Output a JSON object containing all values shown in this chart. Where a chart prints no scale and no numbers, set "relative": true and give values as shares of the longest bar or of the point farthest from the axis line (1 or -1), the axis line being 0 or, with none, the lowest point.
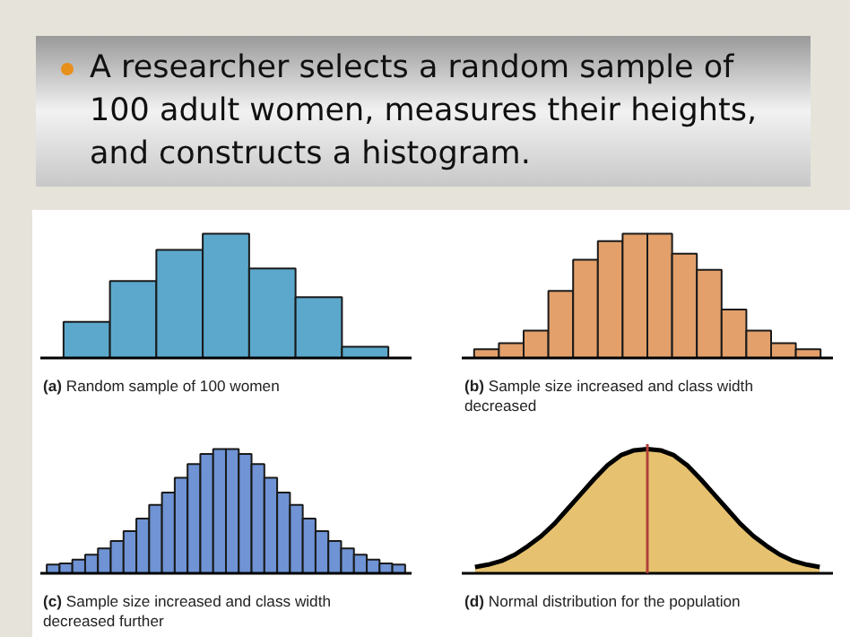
{
  "chart_data": [
    {
      "type": "other",
      "title": "A researcher selects a random sample of 100 adult women, measures their heights, and constructs a histogram."
    },
    {
      "type": "bar",
      "relative": true,
      "grid": false,
      "tick_labels": false,
      "xlabel": "(a) Random sample of 100 women",
      "color": "#5ba8cc",
      "categories": [
        null,
        null,
        null,
        null,
        null,
        null,
        null
      ],
      "values": [
        0.29,
        0.62,
        0.87,
        1,
        0.72,
        0.49,
        0.09
      ]
    },
    {
      "type": "bar",
      "relative": true,
      "grid": false,
      "tick_labels": false,
      "xlabel": "(b) Sample size increased and class width decreased",
      "color": "#e3a06b",
      "categories": [
        null,
        null,
        null,
        null,
        null,
        null,
        null,
        null,
        null,
        null,
        null,
        null,
        null,
        null
      ],
      "values": [
        0.07,
        0.12,
        0.22,
        0.54,
        0.79,
        0.94,
        1,
        1,
        0.84,
        0.71,
        0.39,
        0.22,
        0.12,
        0.07
      ]
    },
    {
      "type": "bar",
      "relative": true,
      "grid": false,
      "tick_labels": false,
      "xlabel": "(c) Sample size increased and class width decreased further",
      "color": "#6f93d4",
      "categories": [
        null,
        null,
        null,
        null,
        null,
        null,
        null,
        null,
        null,
        null,
        null,
        null,
        null,
        null,
        null,
        null,
        null,
        null,
        null,
        null,
        null,
        null,
        null,
        null,
        null,
        null,
        null,
        null
      ],
      "values": [
        0.07,
        0.08,
        0.11,
        0.15,
        0.2,
        0.26,
        0.34,
        0.44,
        0.55,
        0.65,
        0.77,
        0.88,
        0.96,
        1,
        1,
        0.96,
        0.88,
        0.77,
        0.65,
        0.55,
        0.44,
        0.34,
        0.26,
        0.2,
        0.15,
        0.11,
        0.08,
        0.07
      ]
    },
    {
      "type": "area",
      "relative": true,
      "grid": false,
      "tick_labels": false,
      "xlabel": "(d) Normal distribution for the population",
      "color": "#e6c270",
      "categories": [
        null,
        null,
        null,
        null,
        null,
        null,
        null,
        null,
        null,
        null,
        null,
        null,
        null,
        null,
        null,
        null,
        null,
        null,
        null,
        null,
        null,
        null,
        null,
        null,
        null,
        null,
        null
      ],
      "values": [
        0.05,
        0.07,
        0.1,
        0.15,
        0.22,
        0.3,
        0.4,
        0.52,
        0.64,
        0.76,
        0.87,
        0.95,
        0.99,
        1,
        0.99,
        0.95,
        0.87,
        0.76,
        0.64,
        0.52,
        0.4,
        0.3,
        0.22,
        0.15,
        0.1,
        0.07,
        0.05
      ]
    }
  ]
}
